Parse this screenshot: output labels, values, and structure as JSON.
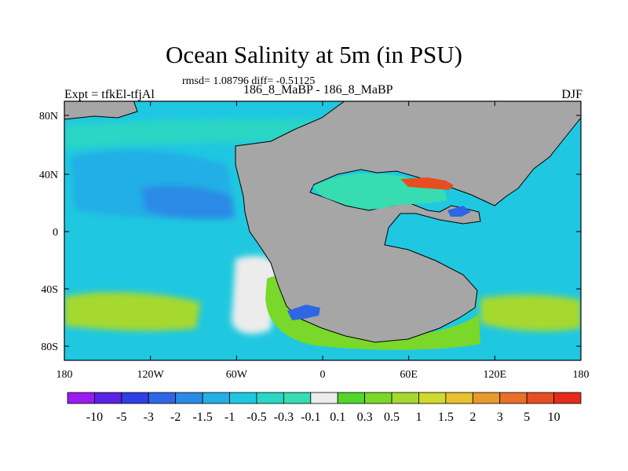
{
  "title": "Ocean Salinity at 5m (in PSU)",
  "stats": "rmsd= 1.08796 diff= -0.51125",
  "experiment": "Expt = tfkEl-tfjAl",
  "subtitle": "186_8_MaBP - 186_8_MaBP",
  "season": "DJF",
  "chart_data": {
    "type": "heatmap",
    "variable": "Ocean salinity difference at 5m",
    "units": "PSU",
    "x_ticks": [
      "180",
      "120W",
      "60W",
      "0",
      "60E",
      "120E",
      "180"
    ],
    "y_ticks": [
      "80N",
      "40N",
      "0",
      "40S",
      "80S"
    ],
    "xlim": [
      -180,
      180
    ],
    "ylim": [
      -90,
      90
    ],
    "colorbar": {
      "labels": [
        "-10",
        "-5",
        "-3",
        "-2",
        "-1.5",
        "-1",
        "-0.5",
        "-0.3",
        "-0.1",
        "0.1",
        "0.3",
        "0.5",
        "1",
        "1.5",
        "2",
        "3",
        "5",
        "10"
      ],
      "colors": [
        "#9a1cf0",
        "#5a22e6",
        "#2f3fe3",
        "#2f66e6",
        "#2b8ae6",
        "#23aee6",
        "#1fc8e0",
        "#2ad6c4",
        "#37ddb0",
        "#ececec",
        "#52d52c",
        "#7ad82a",
        "#a6d92e",
        "#cfd92f",
        "#e7c22d",
        "#e89a2b",
        "#e87028",
        "#e64e22",
        "#e52b1c"
      ]
    },
    "land_color": "#a6a6a6",
    "regions": [
      {
        "name": "ocean-background",
        "value": "-1"
      },
      {
        "name": "north-pacific-basin",
        "value": "-1.5"
      },
      {
        "name": "east-pacific-deep",
        "value": "-2"
      },
      {
        "name": "south-pacific-band",
        "value": "0.5"
      },
      {
        "name": "south-indian-band",
        "value": "0.5"
      },
      {
        "name": "pacific-sw-tongue",
        "value": "0"
      },
      {
        "name": "arctic-coast-band",
        "value": "-0.5"
      },
      {
        "name": "land-south-coast",
        "value": "0.3"
      },
      {
        "name": "east-coast-band",
        "value": "1"
      },
      {
        "name": "inland-sea",
        "value": "-0.3"
      },
      {
        "name": "inland-sea-hotspot",
        "value": "5"
      },
      {
        "name": "southern-blob",
        "value": "-3"
      },
      {
        "name": "eastern-blob",
        "value": "-3"
      }
    ]
  }
}
